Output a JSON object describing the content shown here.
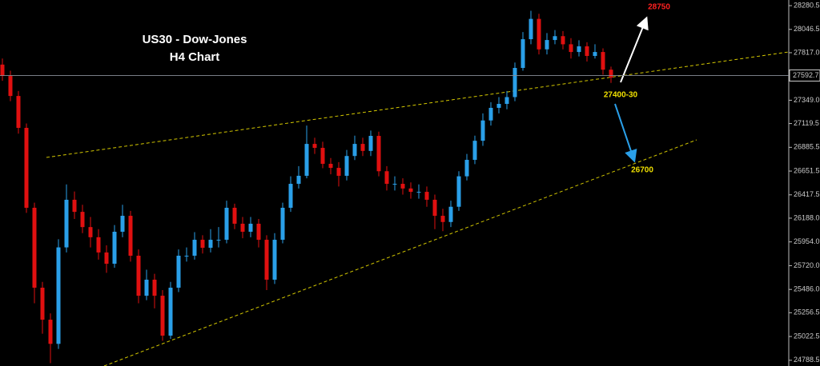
{
  "chart_data": {
    "type": "candlestick",
    "title": "US30 - Dow-Jones",
    "subtitle": "H4 Chart",
    "up_color": "#2a9fe8",
    "down_color": "#e01010",
    "open": [
      27700,
      27588,
      27391,
      27077,
      26290,
      25503,
      25188,
      24950,
      25900,
      26369,
      26250,
      26100,
      26000,
      25850,
      25739,
      26054,
      26211,
      25818,
      25424,
      25582,
      25424,
      25031,
      25503,
      25818,
      25818,
      25975,
      25896,
      25975,
      25975,
      26290,
      26133,
      26054,
      26133,
      25975,
      25582,
      25975,
      26290,
      26526,
      26605,
      26919,
      26880,
      26723,
      26683,
      26605,
      26800,
      26919,
      26850,
      26998,
      26650,
      26526,
      26526,
      26480,
      26447,
      26447,
      26369,
      26211,
      26150,
      26300,
      26600,
      26762,
      26950,
      27150,
      27274,
      27313,
      27380,
      27667,
      27950,
      28150,
      27850,
      27942,
      27980,
      27900,
      27824,
      27880,
      27785,
      27824,
      27650
    ],
    "high": [
      27760,
      27640,
      27440,
      27120,
      26340,
      25560,
      25250,
      25980,
      26520,
      26450,
      26320,
      26200,
      26080,
      25920,
      26120,
      26320,
      26260,
      25880,
      25680,
      25640,
      25480,
      25560,
      25880,
      25900,
      26050,
      26020,
      26080,
      26100,
      26360,
      26330,
      26200,
      26200,
      26180,
      26020,
      26040,
      26340,
      26600,
      26700,
      27100,
      26980,
      26940,
      26780,
      26740,
      26860,
      27000,
      26980,
      27050,
      27040,
      26700,
      26600,
      26580,
      26540,
      26520,
      26500,
      26420,
      26280,
      26360,
      26650,
      26820,
      27000,
      27220,
      27330,
      27380,
      27440,
      27720,
      28020,
      28230,
      28200,
      28010,
      28040,
      28030,
      27960,
      27940,
      27920,
      27900,
      27860,
      27680
    ],
    "low": [
      27540,
      27340,
      27020,
      26240,
      25350,
      25050,
      24760,
      24900,
      25850,
      26180,
      26040,
      25900,
      25780,
      25650,
      25700,
      26000,
      25760,
      25350,
      25380,
      25300,
      24980,
      25000,
      25460,
      25760,
      25780,
      25840,
      25850,
      25900,
      25940,
      26080,
      25990,
      26000,
      25900,
      25480,
      25540,
      25940,
      26250,
      26480,
      26580,
      26820,
      26680,
      26620,
      26500,
      26560,
      26760,
      26800,
      26800,
      26600,
      26460,
      26460,
      26420,
      26380,
      26380,
      26300,
      26080,
      26060,
      26100,
      26260,
      26560,
      26720,
      26900,
      27100,
      27220,
      27260,
      27340,
      27640,
      27900,
      27800,
      27800,
      27900,
      27850,
      27760,
      27780,
      27730,
      27760,
      27600,
      27520
    ],
    "close": [
      27588,
      27391,
      27077,
      26290,
      25503,
      25188,
      24950,
      25900,
      26369,
      26250,
      26100,
      26000,
      25850,
      25739,
      26054,
      26211,
      25818,
      25424,
      25582,
      25424,
      25031,
      25503,
      25818,
      25818,
      25975,
      25896,
      25975,
      25975,
      26290,
      26133,
      26054,
      26133,
      25975,
      25582,
      25975,
      26290,
      26526,
      26605,
      26919,
      26880,
      26723,
      26683,
      26605,
      26800,
      26919,
      26850,
      26998,
      26650,
      26526,
      26526,
      26480,
      26447,
      26447,
      26369,
      26211,
      26150,
      26300,
      26600,
      26762,
      26950,
      27150,
      27274,
      27313,
      27380,
      27667,
      27950,
      28150,
      27850,
      27942,
      27980,
      27900,
      27824,
      27880,
      27785,
      27824,
      27650,
      27572
    ],
    "ylim": [
      24732,
      28336
    ],
    "yticks": [
      28280.5,
      28046.5,
      {
        "value": 27817,
        "label": "27817.0"
      },
      {
        "value": 27349,
        "label": "27349.0"
      },
      27119.5,
      26885.5,
      26651.5,
      26417.5,
      {
        "value": 26188,
        "label": "26188.0"
      },
      {
        "value": 25954,
        "label": "25954.0"
      },
      {
        "value": 25720,
        "label": "25720.0"
      },
      {
        "value": 25486,
        "label": "25486.0"
      },
      25256.5,
      25022.5,
      24788.5
    ],
    "last_price": 27592.7,
    "annotations": [
      "28750",
      "27400-30",
      "26700"
    ]
  }
}
